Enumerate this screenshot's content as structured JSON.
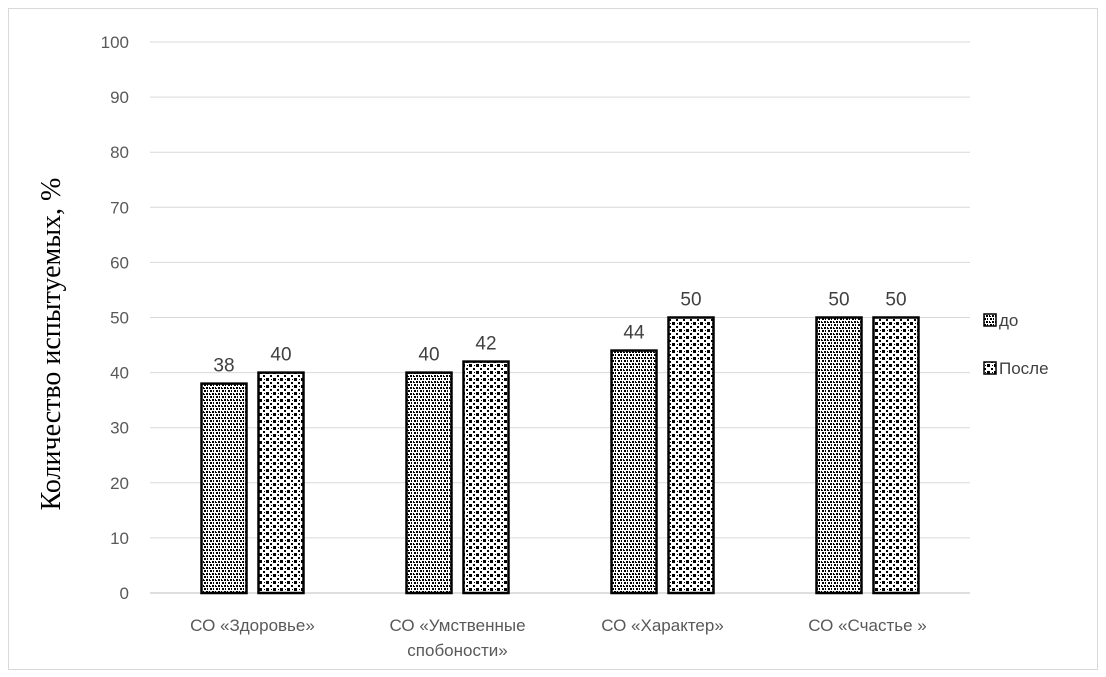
{
  "chart_data": {
    "type": "bar",
    "title": "",
    "xlabel": "",
    "ylabel": "Количество испытуемых, %",
    "ylim": [
      0,
      100
    ],
    "yticks": [
      0,
      10,
      20,
      30,
      40,
      50,
      60,
      70,
      80,
      90,
      100
    ],
    "grid": true,
    "legend_position": "right",
    "categories": [
      [
        "СО «Здоровье»"
      ],
      [
        "СО «Умственные",
        "спобоности»"
      ],
      [
        "СО «Характер»"
      ],
      [
        "СО «Счастье »"
      ]
    ],
    "series": [
      {
        "name": "до",
        "values": [
          38,
          40,
          44,
          50
        ],
        "pattern": "checker",
        "color": "#000000"
      },
      {
        "name": "После",
        "values": [
          40,
          42,
          50,
          50
        ],
        "pattern": "dots",
        "color": "#000000"
      }
    ]
  }
}
